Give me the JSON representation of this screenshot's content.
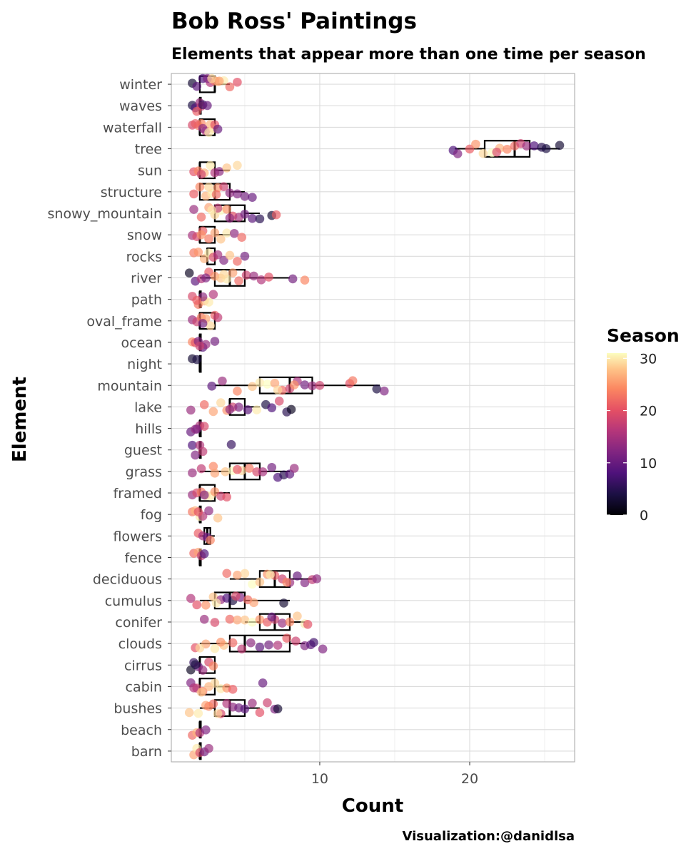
{
  "chart_data": {
    "type": "boxplot",
    "orientation": "horizontal",
    "title": "Bob Ross' Paintings",
    "subtitle": "Elements that appear more than one time per season",
    "xlabel": "Count",
    "ylabel": "Element",
    "xlim": [
      0.1,
      27
    ],
    "x_ticks": [
      10,
      20
    ],
    "grid": true,
    "legend": {
      "title": "Season",
      "type": "colorbar",
      "palette": "magma",
      "min": 0,
      "max": 31,
      "ticks": [
        0,
        10,
        20,
        30
      ],
      "placement": "right"
    },
    "caption": "Visualization:@danidlsa",
    "categories": [
      "winter",
      "waves",
      "waterfall",
      "tree",
      "sun",
      "structure",
      "snowy_mountain",
      "snow",
      "rocks",
      "river",
      "path",
      "oval_frame",
      "ocean",
      "night",
      "mountain",
      "lake",
      "hills",
      "guest",
      "grass",
      "framed",
      "fog",
      "flowers",
      "fence",
      "deciduous",
      "cumulus",
      "conifer",
      "clouds",
      "cirrus",
      "cabin",
      "bushes",
      "beach",
      "barn"
    ],
    "boxes": [
      {
        "element": "winter",
        "min": 2,
        "q1": 2,
        "median": 3,
        "q3": 3,
        "max": 4
      },
      {
        "element": "waves",
        "min": 2,
        "q1": 2,
        "median": 2,
        "q3": 2,
        "max": 2
      },
      {
        "element": "waterfall",
        "min": 2,
        "q1": 2,
        "median": 2,
        "q3": 3,
        "max": 3
      },
      {
        "element": "tree",
        "min": 19,
        "q1": 21,
        "median": 23,
        "q3": 24,
        "max": 26
      },
      {
        "element": "sun",
        "min": 2,
        "q1": 2,
        "median": 2,
        "q3": 3,
        "max": 4
      },
      {
        "element": "structure",
        "min": 2,
        "q1": 2,
        "median": 3,
        "q3": 4,
        "max": 5
      },
      {
        "element": "snowy_mountain",
        "min": 3,
        "q1": 3,
        "median": 4,
        "q3": 5,
        "max": 6
      },
      {
        "element": "snow",
        "min": 2,
        "q1": 2,
        "median": 2,
        "q3": 3,
        "max": 4
      },
      {
        "element": "rocks",
        "min": 2,
        "q1": 2.5,
        "median": 2.5,
        "q3": 3,
        "max": 3
      },
      {
        "element": "river",
        "min": 2,
        "q1": 3,
        "median": 4,
        "q3": 5,
        "max": 8
      },
      {
        "element": "path",
        "min": 2,
        "q1": 2,
        "median": 2,
        "q3": 2,
        "max": 2
      },
      {
        "element": "oval_frame",
        "min": 2,
        "q1": 2,
        "median": 2,
        "q3": 3,
        "max": 3
      },
      {
        "element": "ocean",
        "min": 2,
        "q1": 2,
        "median": 2,
        "q3": 2,
        "max": 2
      },
      {
        "element": "night",
        "min": 2,
        "q1": 2,
        "median": 2,
        "q3": 2,
        "max": 2
      },
      {
        "element": "mountain",
        "min": 3,
        "q1": 6,
        "median": 8,
        "q3": 9.5,
        "max": 14
      },
      {
        "element": "lake",
        "min": 4,
        "q1": 4,
        "median": 4,
        "q3": 5,
        "max": 6
      },
      {
        "element": "hills",
        "min": 2,
        "q1": 2,
        "median": 2,
        "q3": 2,
        "max": 2
      },
      {
        "element": "guest",
        "min": 2,
        "q1": 2,
        "median": 2,
        "q3": 2,
        "max": 2
      },
      {
        "element": "grass",
        "min": 2,
        "q1": 4,
        "median": 5,
        "q3": 6,
        "max": 8
      },
      {
        "element": "framed",
        "min": 2,
        "q1": 2,
        "median": 2,
        "q3": 3,
        "max": 4
      },
      {
        "element": "fog",
        "min": 2,
        "q1": 2,
        "median": 2,
        "q3": 2,
        "max": 2
      },
      {
        "element": "flowers",
        "min": 2,
        "q1": 2.3,
        "median": 2.5,
        "q3": 2.7,
        "max": 3
      },
      {
        "element": "fence",
        "min": 2,
        "q1": 2,
        "median": 2,
        "q3": 2,
        "max": 2
      },
      {
        "element": "deciduous",
        "min": 4,
        "q1": 6,
        "median": 7,
        "q3": 8,
        "max": 9.5
      },
      {
        "element": "cumulus",
        "min": 2,
        "q1": 3,
        "median": 4,
        "q3": 5,
        "max": 8
      },
      {
        "element": "conifer",
        "min": 5,
        "q1": 6,
        "median": 7,
        "q3": 8,
        "max": 9
      },
      {
        "element": "clouds",
        "min": 2,
        "q1": 4,
        "median": 5,
        "q3": 8,
        "max": 9
      },
      {
        "element": "cirrus",
        "min": 2,
        "q1": 2,
        "median": 2,
        "q3": 3,
        "max": 3
      },
      {
        "element": "cabin",
        "min": 2,
        "q1": 2,
        "median": 2,
        "q3": 3,
        "max": 4
      },
      {
        "element": "bushes",
        "min": 2,
        "q1": 3,
        "median": 4,
        "q3": 5,
        "max": 6
      },
      {
        "element": "beach",
        "min": 2,
        "q1": 2,
        "median": 2,
        "q3": 2,
        "max": 2
      },
      {
        "element": "barn",
        "min": 2,
        "q1": 2,
        "median": 2,
        "q3": 2,
        "max": 2
      }
    ],
    "points": [
      {
        "element": "winter",
        "x": [
          1.5,
          2.2,
          2.7,
          3.0,
          3.2,
          3.6,
          4.0,
          2.5,
          2.8,
          4.5,
          1.8,
          3.3
        ],
        "season": [
          3,
          8,
          16,
          23,
          27,
          30,
          22,
          12,
          29,
          20,
          9,
          26
        ]
      },
      {
        "element": "waves",
        "x": [
          1.5,
          1.7,
          2.0,
          2.1,
          2.2,
          2.5,
          1.8
        ],
        "season": [
          4,
          8,
          14,
          18,
          6,
          10,
          21
        ]
      },
      {
        "element": "waterfall",
        "x": [
          1.5,
          1.9,
          2.1,
          2.4,
          2.7,
          2.9,
          3.0,
          3.2,
          2.2,
          1.7,
          2.6
        ],
        "season": [
          19,
          23,
          24,
          16,
          27,
          29,
          20,
          10,
          13,
          21,
          30
        ]
      },
      {
        "element": "tree",
        "x": [
          18.9,
          19.2,
          20.0,
          20.4,
          20.9,
          21.5,
          22.0,
          22.5,
          23.0,
          23.4,
          23.8,
          24.3,
          24.8,
          25.1,
          26.0,
          21.8
        ],
        "season": [
          8,
          12,
          21,
          25,
          29,
          31,
          27,
          24,
          22,
          18,
          14,
          8,
          5,
          4,
          3,
          19
        ]
      },
      {
        "element": "sun",
        "x": [
          1.6,
          1.9,
          2.3,
          2.7,
          3.0,
          3.3,
          3.8,
          4.5,
          2.1
        ],
        "season": [
          20,
          24,
          27,
          30,
          16,
          13,
          28,
          29,
          18
        ]
      },
      {
        "element": "structure",
        "x": [
          1.6,
          2.0,
          2.4,
          2.8,
          3.2,
          3.6,
          4.0,
          4.5,
          5.0,
          5.5,
          2.6,
          3.1
        ],
        "season": [
          21,
          24,
          27,
          30,
          25,
          18,
          13,
          12,
          11,
          10,
          29,
          22
        ]
      },
      {
        "element": "snowy_mountain",
        "x": [
          1.6,
          2.1,
          2.6,
          3.0,
          3.4,
          3.8,
          4.2,
          4.6,
          5.0,
          5.5,
          6.0,
          6.8,
          7.1,
          3.2,
          4.0,
          2.8
        ],
        "season": [
          14,
          22,
          26,
          29,
          31,
          25,
          20,
          15,
          11,
          9,
          5,
          3,
          21,
          17,
          13,
          30
        ]
      },
      {
        "element": "snow",
        "x": [
          1.5,
          1.8,
          2.2,
          2.6,
          3.0,
          3.4,
          3.8,
          4.3,
          4.8,
          2.1
        ],
        "season": [
          15,
          19,
          21,
          23,
          26,
          28,
          30,
          13,
          22,
          25
        ]
      },
      {
        "element": "rocks",
        "x": [
          1.6,
          1.9,
          2.3,
          2.6,
          2.9,
          3.2,
          3.6,
          4.0,
          4.5,
          5.0
        ],
        "season": [
          23,
          25,
          27,
          30,
          19,
          15,
          12,
          28,
          22,
          11
        ]
      },
      {
        "element": "river",
        "x": [
          1.3,
          1.7,
          2.1,
          2.6,
          3.0,
          3.4,
          3.8,
          4.2,
          4.6,
          5.1,
          5.6,
          6.1,
          6.6,
          8.2,
          9.0,
          2.4,
          3.6
        ],
        "season": [
          2,
          9,
          16,
          21,
          25,
          28,
          30,
          26,
          22,
          18,
          14,
          16,
          20,
          11,
          24,
          12,
          29
        ]
      },
      {
        "element": "path",
        "x": [
          1.5,
          1.9,
          2.3,
          2.6,
          2.9,
          2.2,
          1.8
        ],
        "season": [
          19,
          23,
          27,
          30,
          16,
          13,
          21
        ]
      },
      {
        "element": "oval_frame",
        "x": [
          1.5,
          1.8,
          2.1,
          2.4,
          2.7,
          3.0,
          3.2,
          2.2
        ],
        "season": [
          14,
          18,
          23,
          26,
          29,
          21,
          17,
          11
        ]
      },
      {
        "element": "ocean",
        "x": [
          1.5,
          1.7,
          1.9,
          2.2,
          2.4,
          3.0,
          2.0
        ],
        "season": [
          24,
          20,
          12,
          9,
          14,
          11,
          18
        ]
      },
      {
        "element": "night",
        "x": [
          1.5,
          1.8
        ],
        "season": [
          3,
          4
        ]
      },
      {
        "element": "mountain",
        "x": [
          2.8,
          3.5,
          4.5,
          5.5,
          6.0,
          6.5,
          7.0,
          7.5,
          8.0,
          8.5,
          9.0,
          9.5,
          10.0,
          12.0,
          12.2,
          13.8,
          14.3,
          7.2,
          8.3
        ],
        "season": [
          9,
          14,
          24,
          28,
          30,
          31,
          26,
          22,
          18,
          15,
          11,
          14,
          18,
          20,
          23,
          4,
          12,
          29,
          25
        ]
      },
      {
        "element": "lake",
        "x": [
          1.4,
          2.3,
          2.9,
          3.4,
          3.8,
          4.2,
          4.6,
          5.2,
          5.8,
          6.4,
          6.8,
          7.3,
          7.8,
          8.1,
          4.0
        ],
        "season": [
          14,
          22,
          26,
          29,
          25,
          18,
          12,
          9,
          30,
          4,
          8,
          19,
          5,
          2,
          13
        ]
      },
      {
        "element": "hills",
        "x": [
          1.4,
          1.7,
          2.0,
          2.3,
          1.8
        ],
        "season": [
          10,
          14,
          16,
          19,
          12
        ]
      },
      {
        "element": "guest",
        "x": [
          1.5,
          1.7,
          2.0,
          2.2,
          4.1
        ],
        "season": [
          8,
          12,
          16,
          17,
          6
        ]
      },
      {
        "element": "grass",
        "x": [
          1.5,
          2.1,
          2.9,
          3.7,
          4.2,
          4.8,
          5.3,
          5.8,
          6.2,
          6.8,
          7.2,
          7.6,
          8.0,
          8.3,
          3.0,
          4.5
        ],
        "season": [
          14,
          17,
          24,
          28,
          31,
          29,
          23,
          19,
          15,
          11,
          8,
          5,
          9,
          14,
          26,
          20
        ]
      },
      {
        "element": "framed",
        "x": [
          1.5,
          1.8,
          2.1,
          2.4,
          2.7,
          3.0,
          3.4,
          3.8,
          2.3
        ],
        "season": [
          14,
          19,
          23,
          28,
          30,
          25,
          18,
          20,
          12
        ]
      },
      {
        "element": "fog",
        "x": [
          1.5,
          1.7,
          2.0,
          2.2,
          2.6,
          3.2,
          1.9
        ],
        "season": [
          23,
          27,
          30,
          16,
          13,
          28,
          20
        ]
      },
      {
        "element": "flowers",
        "x": [
          1.9,
          2.2,
          2.5,
          2.7
        ],
        "season": [
          21,
          15,
          10,
          24
        ]
      },
      {
        "element": "fence",
        "x": [
          1.6,
          1.9,
          2.1,
          2.3
        ],
        "season": [
          22,
          26,
          17,
          8
        ]
      },
      {
        "element": "deciduous",
        "x": [
          3.8,
          4.5,
          5.0,
          5.5,
          6.0,
          6.5,
          7.0,
          7.5,
          8.0,
          8.5,
          9.0,
          9.5,
          9.8,
          6.7,
          7.8
        ],
        "season": [
          22,
          26,
          29,
          31,
          28,
          25,
          21,
          18,
          14,
          10,
          12,
          17,
          13,
          30,
          24
        ]
      },
      {
        "element": "cumulus",
        "x": [
          1.4,
          1.8,
          2.4,
          2.9,
          3.4,
          3.8,
          4.2,
          4.7,
          5.2,
          5.6,
          7.6,
          3.1,
          4.4
        ],
        "season": [
          16,
          20,
          25,
          28,
          14,
          8,
          4,
          12,
          22,
          26,
          3,
          30,
          19
        ]
      },
      {
        "element": "conifer",
        "x": [
          2.3,
          3.0,
          4.0,
          4.5,
          5.0,
          5.5,
          6.0,
          6.5,
          7.0,
          7.5,
          8.0,
          8.5,
          9.0,
          9.2,
          6.8
        ],
        "season": [
          14,
          19,
          22,
          26,
          28,
          31,
          25,
          21,
          18,
          14,
          24,
          28,
          30,
          20,
          10
        ]
      },
      {
        "element": "clouds",
        "x": [
          1.7,
          2.4,
          3.0,
          3.6,
          4.2,
          4.8,
          5.4,
          6.0,
          6.6,
          7.2,
          7.8,
          8.4,
          9.0,
          9.4,
          9.6,
          10.2,
          2.0,
          3.4
        ],
        "season": [
          20,
          26,
          30,
          28,
          22,
          17,
          13,
          9,
          11,
          16,
          21,
          18,
          12,
          9,
          7,
          12,
          29,
          25
        ]
      },
      {
        "element": "cirrus",
        "x": [
          1.4,
          1.6,
          1.9,
          2.2,
          2.6,
          2.9,
          1.7
        ],
        "season": [
          2,
          6,
          10,
          14,
          19,
          24,
          4
        ]
      },
      {
        "element": "cabin",
        "x": [
          1.4,
          1.8,
          2.2,
          2.6,
          3.0,
          3.4,
          3.8,
          4.2,
          6.2,
          2.1,
          1.6
        ],
        "season": [
          12,
          18,
          23,
          27,
          29,
          30,
          25,
          21,
          10,
          28,
          16
        ]
      },
      {
        "element": "bushes",
        "x": [
          1.3,
          1.9,
          2.4,
          2.9,
          3.4,
          3.8,
          4.2,
          4.6,
          5.0,
          5.5,
          6.0,
          6.5,
          7.0,
          7.2,
          3.2,
          2.6
        ],
        "season": [
          28,
          30,
          26,
          22,
          19,
          16,
          13,
          11,
          9,
          14,
          20,
          18,
          12,
          3,
          29,
          24
        ]
      },
      {
        "element": "beach",
        "x": [
          1.5,
          1.8,
          2.0,
          2.4
        ],
        "season": [
          22,
          27,
          16,
          12
        ]
      },
      {
        "element": "barn",
        "x": [
          1.6,
          1.8,
          2.0,
          2.3,
          2.6
        ],
        "season": [
          26,
          30,
          19,
          11,
          14
        ]
      }
    ]
  }
}
